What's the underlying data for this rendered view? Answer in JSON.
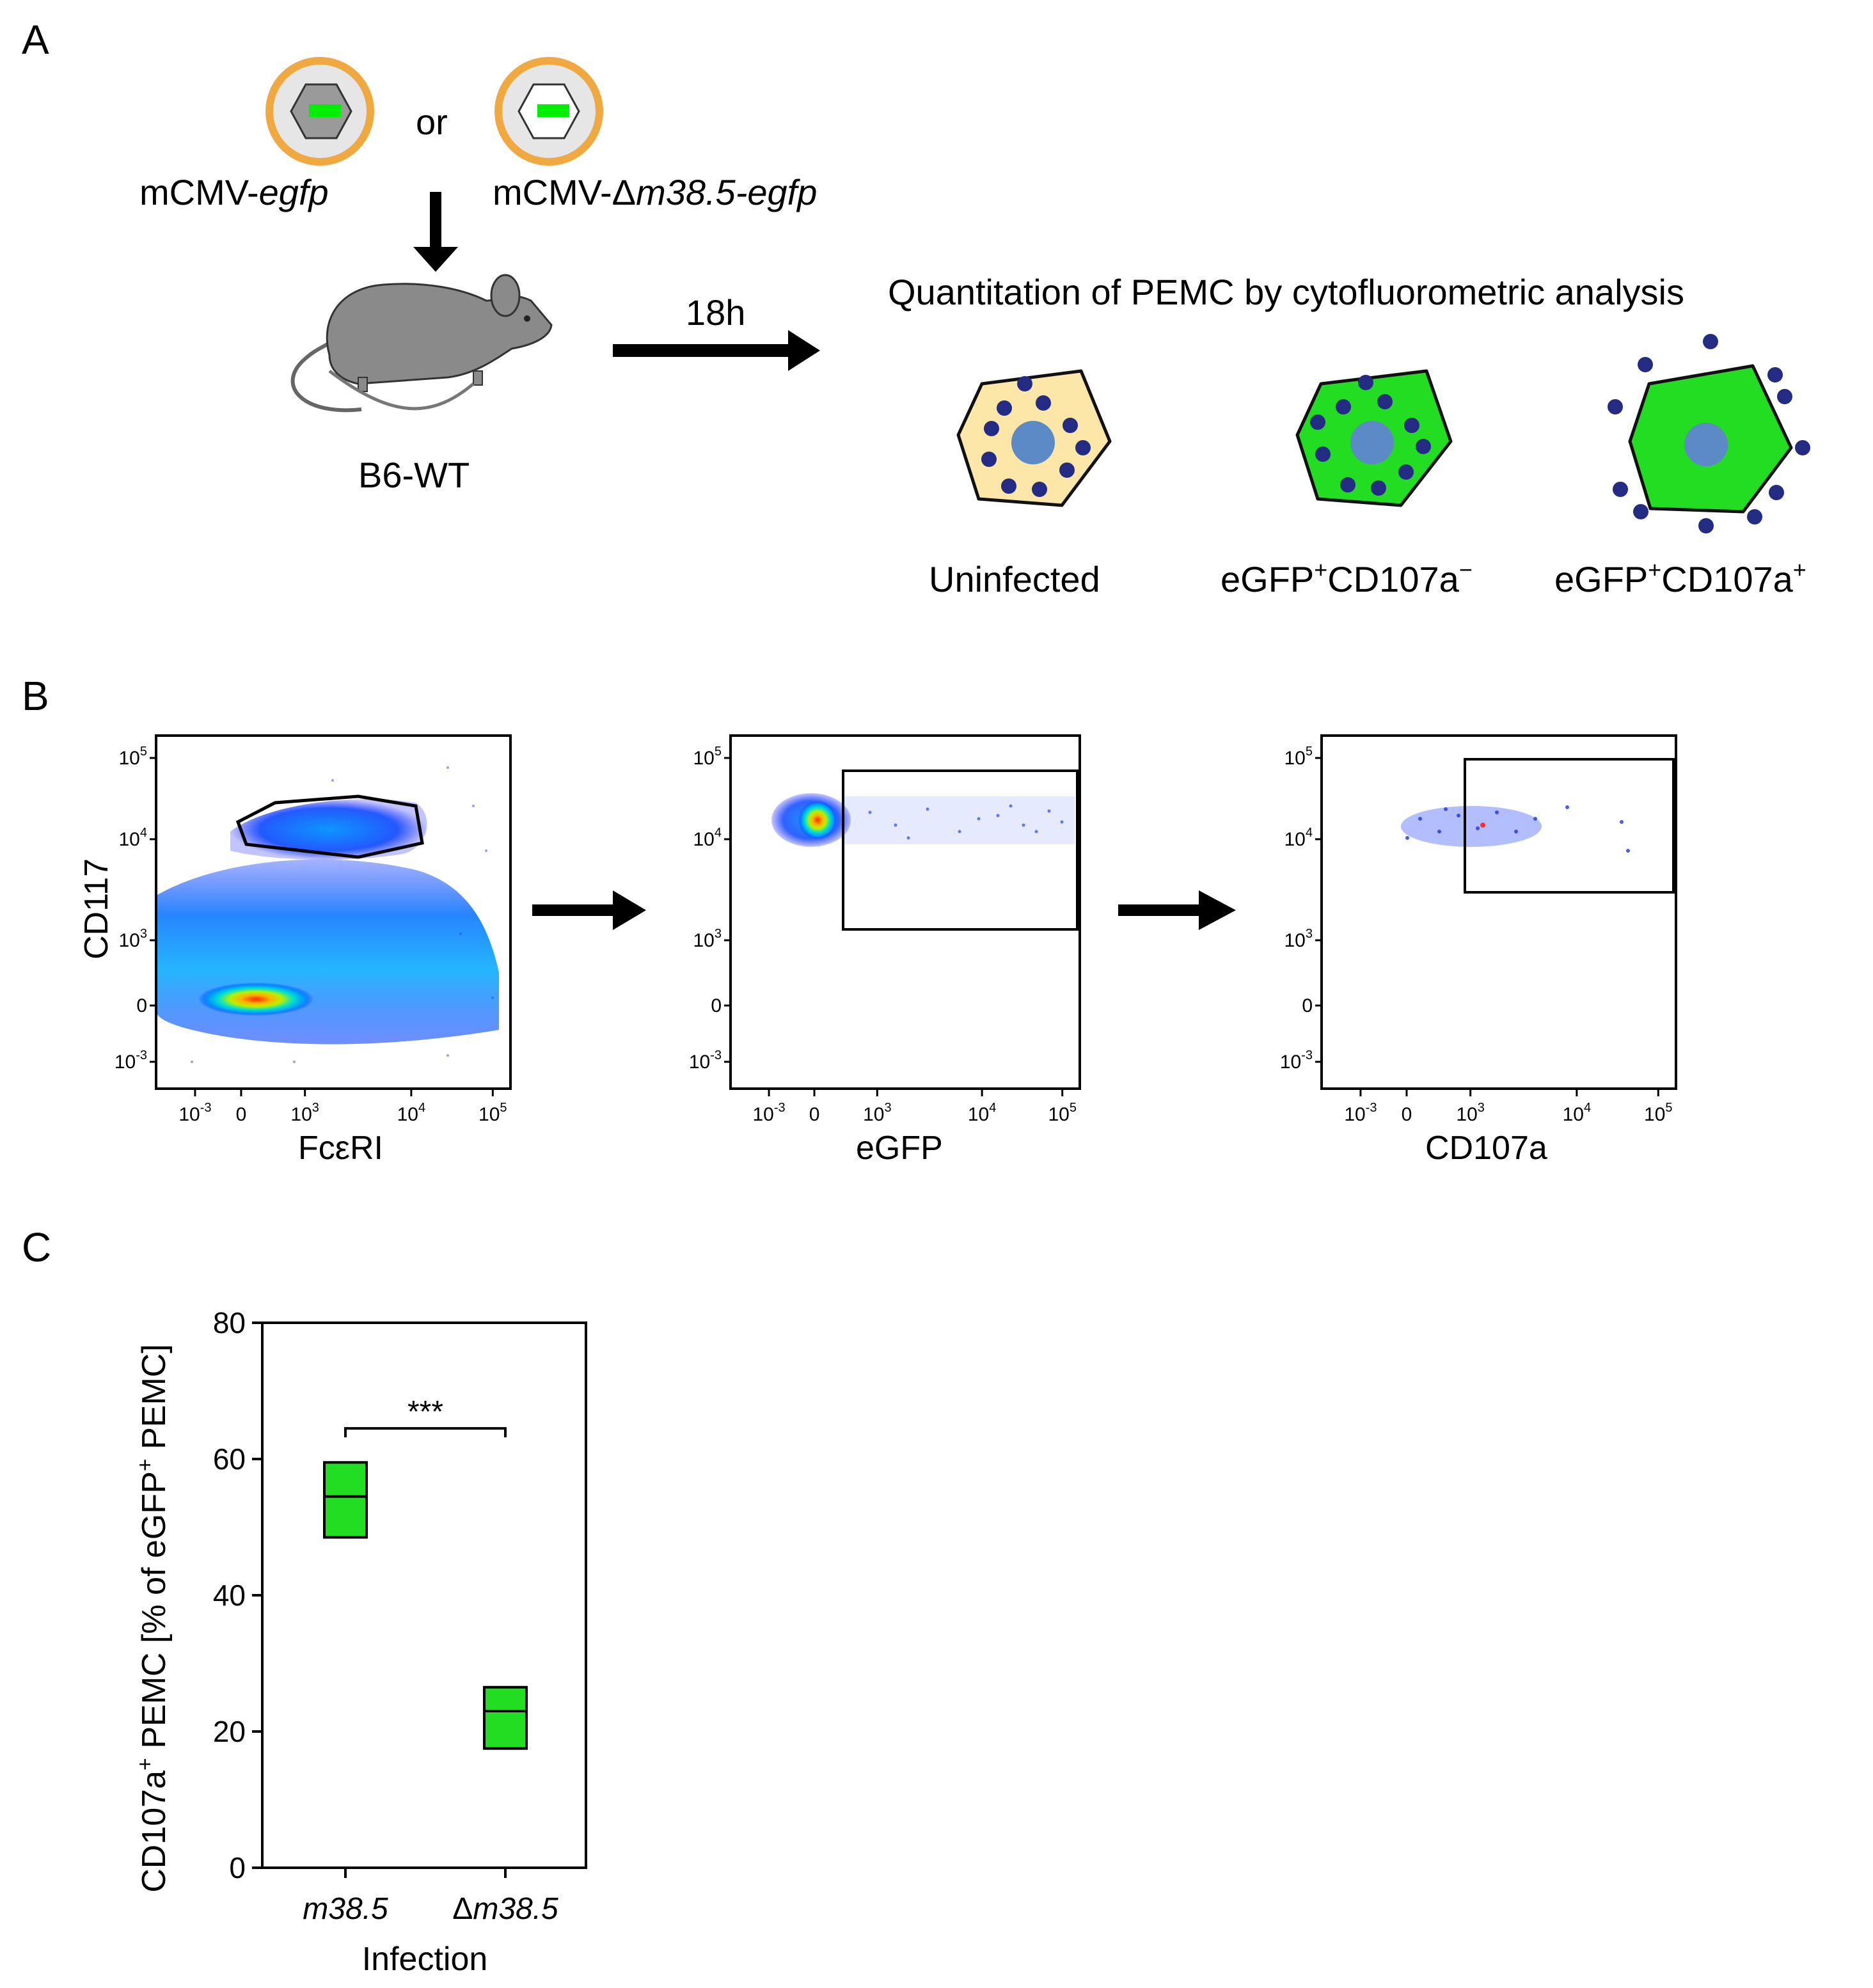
{
  "panel_a": {
    "label": "A",
    "virus_left": "mCMV-",
    "virus_left_italic": "egfp",
    "or_text": "or",
    "virus_right_prefix": "mCMV-Δ",
    "virus_right_italic": "m38.5-egfp",
    "mouse_label": "B6-WT",
    "time_label": "18h",
    "analysis_title": "Quantitation of PEMC by cytofluorometric analysis",
    "cells": [
      {
        "label": "Uninfected",
        "fill": "#fde7a8"
      },
      {
        "label_parts": [
          "eGFP",
          "+",
          "CD107a",
          "−"
        ],
        "fill": "#22dd22"
      },
      {
        "label_parts": [
          "eGFP",
          "+",
          "CD107a",
          "+"
        ],
        "fill": "#22dd22"
      }
    ],
    "colors": {
      "capsid_ring": "#f0a840",
      "egfp": "#00ee00",
      "granule": "#232b83",
      "nucleus": "#5b8ac6",
      "mouse": "#8a8a8a"
    }
  },
  "panel_b": {
    "label": "B",
    "plots": [
      {
        "xlabel": "FcεRI",
        "ylabel": "CD117"
      },
      {
        "xlabel": "eGFP",
        "ylabel": ""
      },
      {
        "xlabel": "CD107a",
        "ylabel": ""
      }
    ],
    "x_ticks": [
      {
        "base": "10",
        "exp": "-3"
      },
      {
        "base": "0",
        "exp": ""
      },
      {
        "base": "10",
        "exp": "3"
      },
      {
        "base": "10",
        "exp": "4"
      },
      {
        "base": "10",
        "exp": "5"
      }
    ],
    "y_ticks": [
      {
        "base": "10",
        "exp": "5"
      },
      {
        "base": "10",
        "exp": "4"
      },
      {
        "base": "10",
        "exp": "3"
      },
      {
        "base": "0",
        "exp": ""
      },
      {
        "base": "10",
        "exp": "-3"
      }
    ]
  },
  "panel_c": {
    "label": "C",
    "significance": "***",
    "ylabel_parts": [
      "CD107a",
      "+",
      " PEMC [% of eGFP",
      "+",
      " PEMC]"
    ],
    "xlabel": "Infection",
    "category_prefixes": [
      "",
      "Δ"
    ]
  },
  "chart_data": {
    "type": "bar",
    "categories": [
      "m38.5",
      "Δm38.5"
    ],
    "values": [
      54.5,
      22.5
    ],
    "series": [
      {
        "values_min": [
          48.5,
          17.5
        ],
        "values_max": [
          59.5,
          26.5
        ],
        "values_mid": [
          54.5,
          23.0
        ]
      }
    ],
    "xlabel": "Infection",
    "ylabel": "CD107a+ PEMC [% of eGFP+ PEMC]",
    "ylim": [
      0,
      80
    ],
    "yticks": [
      0,
      20,
      40,
      60,
      80
    ],
    "bar_color": "#22dd22",
    "annotation": "***"
  }
}
